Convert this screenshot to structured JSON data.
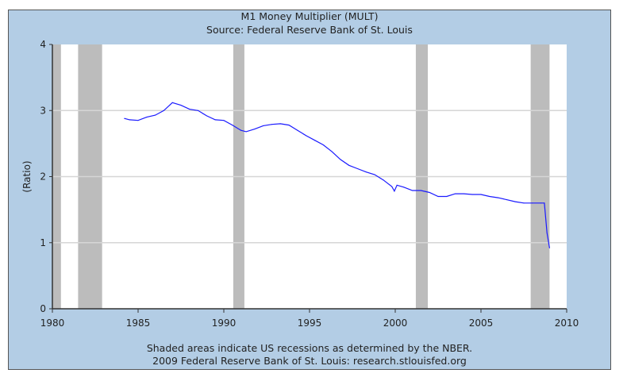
{
  "chart_data": {
    "type": "line",
    "title": "M1 Money Multiplier (MULT)",
    "subtitle": "Source: Federal Reserve Bank of St. Louis",
    "xlabel": "",
    "ylabel": "(Ratio)",
    "xlim": [
      1980,
      2010
    ],
    "ylim": [
      0,
      4
    ],
    "xticks": [
      "1980",
      "1985",
      "1990",
      "1995",
      "2000",
      "2005",
      "2010"
    ],
    "yticks": [
      "0",
      "1",
      "2",
      "3",
      "4"
    ],
    "grid": true,
    "recessions": [
      [
        1980.0,
        1980.5
      ],
      [
        1981.5,
        1982.9
      ],
      [
        1990.55,
        1991.2
      ],
      [
        2001.2,
        2001.9
      ],
      [
        2007.9,
        2009.0
      ]
    ],
    "series": [
      {
        "name": "MULT",
        "color": "#1a1aff",
        "x": [
          1984.2,
          1984.5,
          1985.0,
          1985.5,
          1986.0,
          1986.5,
          1987.0,
          1987.5,
          1988.0,
          1988.5,
          1989.0,
          1989.5,
          1990.0,
          1990.5,
          1991.0,
          1991.3,
          1991.8,
          1992.3,
          1992.8,
          1993.3,
          1993.8,
          1994.3,
          1994.8,
          1995.3,
          1995.8,
          1996.3,
          1996.8,
          1997.3,
          1997.8,
          1998.3,
          1998.8,
          1999.3,
          1999.8,
          1999.95,
          2000.1,
          2000.5,
          2001.0,
          2001.5,
          2002.0,
          2002.5,
          2003.0,
          2003.5,
          2004.0,
          2004.5,
          2005.0,
          2005.5,
          2006.0,
          2006.5,
          2007.0,
          2007.5,
          2008.0,
          2008.5,
          2008.7,
          2008.85,
          2009.0
        ],
        "values": [
          2.88,
          2.86,
          2.85,
          2.9,
          2.93,
          3.0,
          3.12,
          3.08,
          3.02,
          3.0,
          2.92,
          2.86,
          2.85,
          2.78,
          2.7,
          2.68,
          2.72,
          2.77,
          2.79,
          2.8,
          2.78,
          2.7,
          2.62,
          2.55,
          2.48,
          2.38,
          2.26,
          2.17,
          2.12,
          2.07,
          2.03,
          1.95,
          1.85,
          1.78,
          1.87,
          1.84,
          1.79,
          1.79,
          1.76,
          1.7,
          1.7,
          1.74,
          1.74,
          1.73,
          1.73,
          1.7,
          1.68,
          1.65,
          1.62,
          1.6,
          1.6,
          1.6,
          1.6,
          1.15,
          0.92
        ]
      }
    ],
    "notes": [
      "Shaded areas indicate US recessions as determined by the NBER.",
      "2009 Federal Reserve Bank of St. Louis: research.stlouisfed.org"
    ]
  }
}
